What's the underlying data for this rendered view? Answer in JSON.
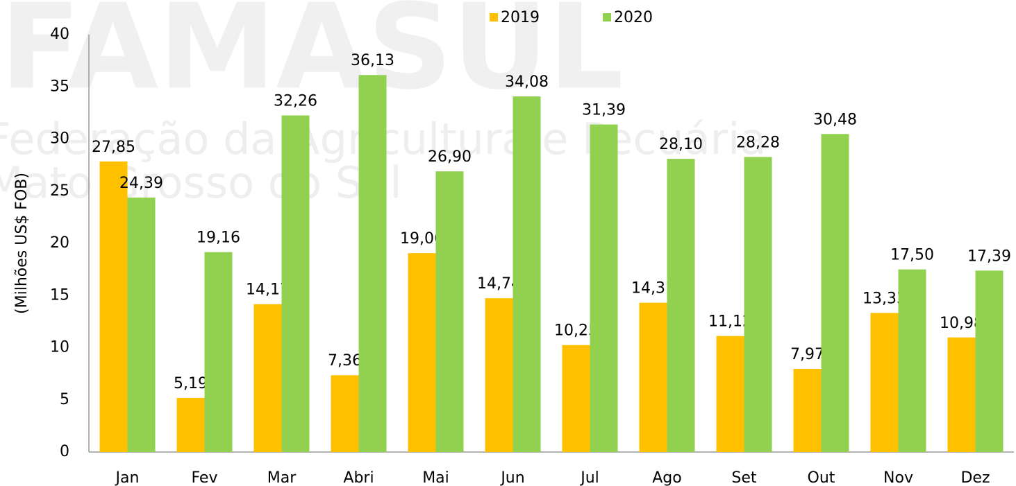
{
  "chart_data": {
    "type": "bar",
    "watermark": [
      "FAMASUL",
      "Federação da Agricultura e Pecuária",
      "Mato Grosso do Sul"
    ],
    "ylabel": "(Milhões US$ FOB)",
    "categories": [
      "Jan",
      "Fev",
      "Mar",
      "Abri",
      "Mai",
      "Jun",
      "Jul",
      "Ago",
      "Set",
      "Out",
      "Nov",
      "Dez"
    ],
    "series": [
      {
        "name": "2019",
        "color": "#FFC000",
        "values": [
          27.85,
          5.19,
          14.17,
          7.36,
          19.06,
          14.74,
          10.25,
          14.31,
          11.12,
          7.97,
          13.33,
          10.98
        ],
        "value_labels": [
          "27,85",
          "5,19",
          "14,17",
          "7,36",
          "19,06",
          "14,74",
          "10,25",
          "14,31",
          "11,12",
          "7,97",
          "13,33",
          "10,98"
        ]
      },
      {
        "name": "2020",
        "color": "#92D050",
        "values": [
          24.39,
          19.16,
          32.26,
          36.13,
          26.9,
          34.08,
          31.39,
          28.1,
          28.28,
          30.48,
          17.5,
          17.39
        ],
        "value_labels": [
          "24,39",
          "19,16",
          "32,26",
          "36,13",
          "26,90",
          "34,08",
          "31,39",
          "28,10",
          "28,28",
          "30,48",
          "17,50",
          "17,39"
        ]
      }
    ],
    "ylim": [
      0,
      40
    ],
    "yticks": [
      0,
      5,
      10,
      15,
      20,
      25,
      30,
      35,
      40
    ],
    "grid": false,
    "legend": "top"
  }
}
